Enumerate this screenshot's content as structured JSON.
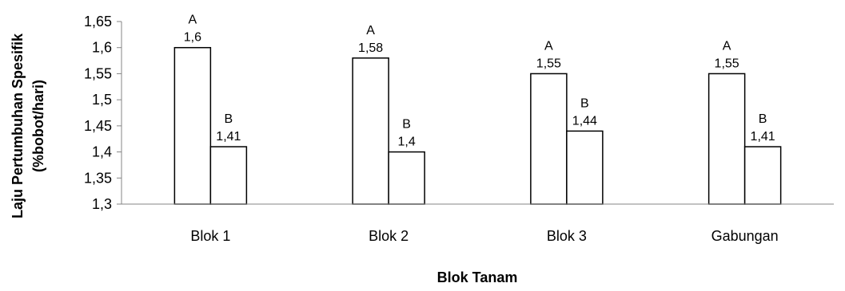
{
  "chart_data": {
    "type": "bar",
    "title": "",
    "xlabel": "Blok Tanam",
    "ylabel_lines": [
      "Laju Pertumbuhan Spesifik",
      "(%bobot/hari)"
    ],
    "categories": [
      "Blok 1",
      "Blok 2",
      "Blok 3",
      "Gabungan"
    ],
    "series": [
      {
        "values": [
          1.6,
          1.58,
          1.55,
          1.55
        ],
        "value_labels": [
          "1,6",
          "1,58",
          "1,55",
          "1,55"
        ],
        "group_labels": [
          "A",
          "A",
          "A",
          "A"
        ],
        "fill": "#ffffff"
      },
      {
        "values": [
          1.41,
          1.4,
          1.44,
          1.41
        ],
        "value_labels": [
          "1,41",
          "1,4",
          "1,44",
          "1,41"
        ],
        "group_labels": [
          "B",
          "B",
          "B",
          "B"
        ],
        "fill": "#ffffff"
      }
    ],
    "ylim": [
      1.3,
      1.65
    ],
    "yticks": [
      1.3,
      1.35,
      1.4,
      1.45,
      1.5,
      1.55,
      1.6,
      1.65
    ],
    "ytick_labels": [
      "1,3",
      "1,35",
      "1,4",
      "1,45",
      "1,5",
      "1,55",
      "1,6",
      "1,65"
    ],
    "grid": false,
    "legend": "none",
    "colors": {
      "bar_stroke": "#000000",
      "axis": "#868686",
      "text": "#000000"
    }
  }
}
